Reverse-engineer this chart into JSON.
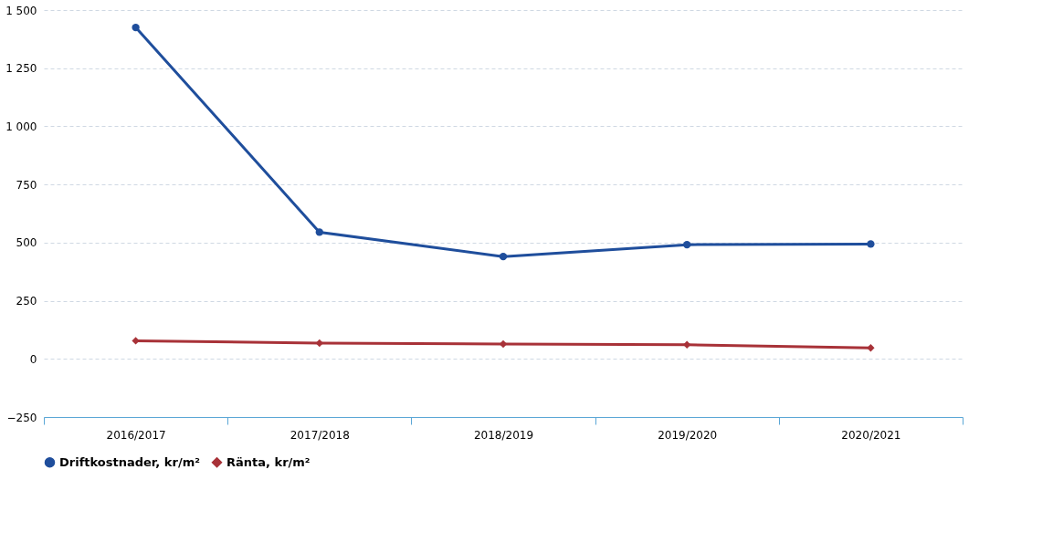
{
  "chart_data": {
    "type": "line",
    "categories": [
      "2016/2017",
      "2017/2018",
      "2018/2019",
      "2019/2020",
      "2020/2021"
    ],
    "series": [
      {
        "name": "Driftkostnader, kr/m²",
        "color": "#1f4e9c",
        "marker": "circle",
        "values": [
          1425,
          545,
          440,
          491,
          494
        ]
      },
      {
        "name": "Ränta, kr/m²",
        "color": "#a83238",
        "marker": "diamond",
        "values": [
          78,
          68,
          64,
          61,
          47
        ]
      }
    ],
    "ylim": [
      -250,
      1500
    ],
    "yticks": [
      {
        "value": -250,
        "label": "−250"
      },
      0,
      250,
      500,
      750,
      {
        "value": 1000,
        "label": "1 000"
      },
      {
        "value": 1250,
        "label": "1 250"
      },
      {
        "value": 1500,
        "label": "1 500"
      }
    ],
    "grid": "y",
    "legend": "bottom",
    "line_style": "solid"
  }
}
